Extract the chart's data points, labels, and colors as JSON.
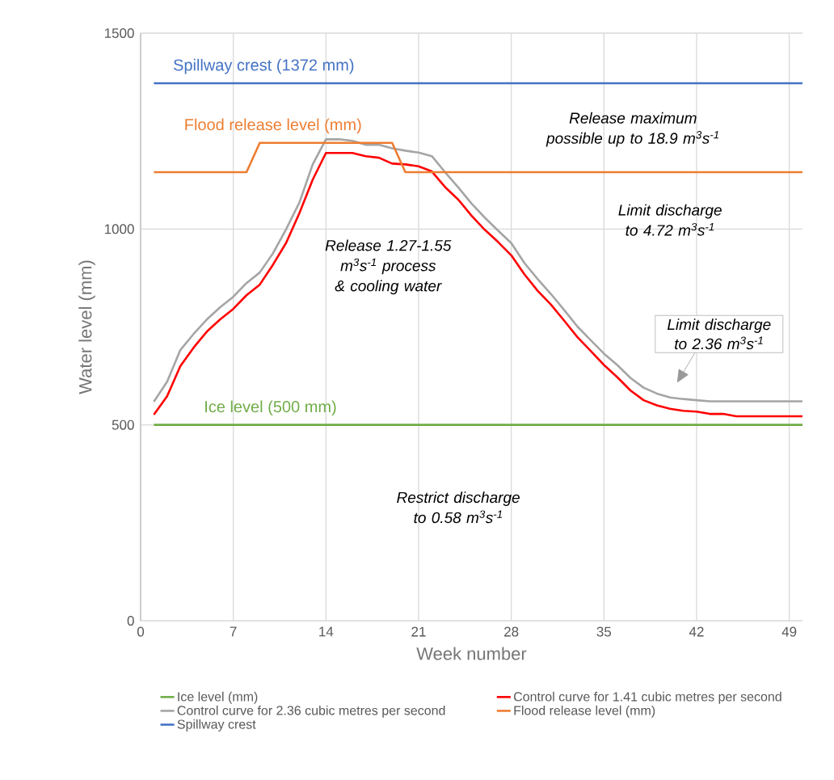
{
  "chart_data": {
    "type": "line",
    "xlabel": "Week number",
    "ylabel": "Water level (mm)",
    "xlim": [
      0,
      50
    ],
    "ylim": [
      0,
      1500
    ],
    "xticks": [
      0,
      7,
      14,
      21,
      28,
      35,
      42,
      49
    ],
    "yticks": [
      0,
      500,
      1000,
      1500
    ],
    "grid": true,
    "legend": "bottom",
    "series": [
      {
        "name": "Ice level (mm)",
        "color": "#70ad47",
        "x": [
          1,
          50
        ],
        "values": [
          500,
          500
        ]
      },
      {
        "name": "Control curve for 1.41 cubic metres per second",
        "color": "#ff0000",
        "x": [
          1,
          2,
          3,
          4,
          5,
          6,
          7,
          8,
          9,
          10,
          11,
          12,
          13,
          14,
          15,
          16,
          17,
          18,
          19,
          20,
          21,
          22,
          23,
          24,
          25,
          26,
          27,
          28,
          29,
          30,
          31,
          32,
          33,
          34,
          35,
          36,
          37,
          38,
          39,
          40,
          41,
          42,
          43,
          44,
          45,
          46,
          47,
          48,
          49,
          50
        ],
        "values": [
          526,
          573,
          650,
          697,
          738,
          769,
          796,
          831,
          858,
          909,
          965,
          1041,
          1126,
          1194,
          1194,
          1194,
          1186,
          1182,
          1167,
          1165,
          1160,
          1147,
          1107,
          1075,
          1034,
          998,
          967,
          933,
          884,
          842,
          807,
          766,
          724,
          689,
          653,
          622,
          588,
          563,
          550,
          541,
          536,
          534,
          528,
          528,
          522,
          522,
          522,
          522,
          522,
          522
        ]
      },
      {
        "name": "Control curve for 2.36  cubic metres per second",
        "color": "#a5a5a5",
        "x": [
          1,
          2,
          3,
          4,
          5,
          6,
          7,
          8,
          9,
          10,
          11,
          12,
          13,
          14,
          15,
          16,
          17,
          18,
          19,
          20,
          21,
          22,
          23,
          24,
          25,
          26,
          27,
          28,
          29,
          30,
          31,
          32,
          33,
          34,
          35,
          36,
          37,
          38,
          39,
          40,
          41,
          42,
          43,
          44,
          45,
          46,
          47,
          48,
          49,
          50
        ],
        "values": [
          559,
          610,
          691,
          732,
          769,
          800,
          827,
          862,
          889,
          938,
          1000,
          1068,
          1165,
          1229,
          1229,
          1225,
          1215,
          1215,
          1206,
          1200,
          1195,
          1186,
          1145,
          1106,
          1065,
          1029,
          996,
          964,
          913,
          872,
          834,
          793,
          751,
          716,
          682,
          653,
          620,
          595,
          580,
          570,
          566,
          563,
          560,
          560,
          560,
          560,
          560,
          560,
          560,
          560
        ]
      },
      {
        "name": "Flood release level (mm)",
        "color": "#ed7d31",
        "x": [
          1,
          8,
          9,
          19,
          20,
          50
        ],
        "values": [
          1145,
          1145,
          1220,
          1220,
          1145,
          1145
        ]
      },
      {
        "name": "Spillway crest",
        "color": "#4472c4",
        "x": [
          1,
          50
        ],
        "values": [
          1372,
          1372
        ]
      }
    ],
    "annotations": [
      {
        "text": "Spillway crest (1372 mm)",
        "x": 9.3,
        "y": 1372
      },
      {
        "text": "Flood release level (mm)",
        "x": 10,
        "y": 1220
      },
      {
        "text": "Ice level (500 mm)",
        "x": 9.8,
        "y": 500
      },
      "Release maximum possible up to 18.9 m$^{3}$s$^{-1}$",
      "Limit discharge to 4.72 m$^{3}$s$^{-1}$",
      "Release 1.27-1.55 m$^{3}$s$^{-1}$ process & cooling water",
      "Limit discharge to 2.36 m$^{3}$s$^{-1}$",
      "Restrict discharge to 0.58 m$^{3}$s$^{-1}$"
    ]
  }
}
